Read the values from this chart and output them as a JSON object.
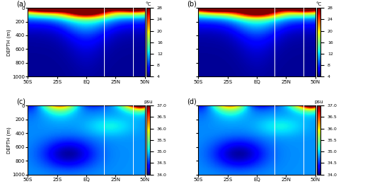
{
  "panels": [
    "(a)",
    "(b)",
    "(c)",
    "(d)"
  ],
  "lat_range": [
    -50,
    50
  ],
  "depth_range": [
    0,
    1000
  ],
  "xtick_labels": [
    "50S",
    "25S",
    "EQ",
    "25N",
    "50N"
  ],
  "xtick_positions": [
    -50,
    -25,
    0,
    25,
    50
  ],
  "ytick_labels": [
    "0",
    "200",
    "400",
    "600",
    "800",
    "1000"
  ],
  "ytick_positions": [
    0,
    200,
    400,
    600,
    800,
    1000
  ],
  "temp_vmin": 4,
  "temp_vmax": 28,
  "sal_vmin": 34,
  "sal_vmax": 37,
  "temp_cbar_ticks": [
    4,
    8,
    12,
    16,
    20,
    24,
    28
  ],
  "sal_cbar_ticks": [
    34,
    34.5,
    35,
    35.5,
    36,
    36.5,
    37
  ],
  "white_line_lat1": 15,
  "white_line_lat2": 40,
  "ylabel": "DEPTH (m)",
  "fig_width": 5.23,
  "fig_height": 2.77,
  "dpi": 100
}
